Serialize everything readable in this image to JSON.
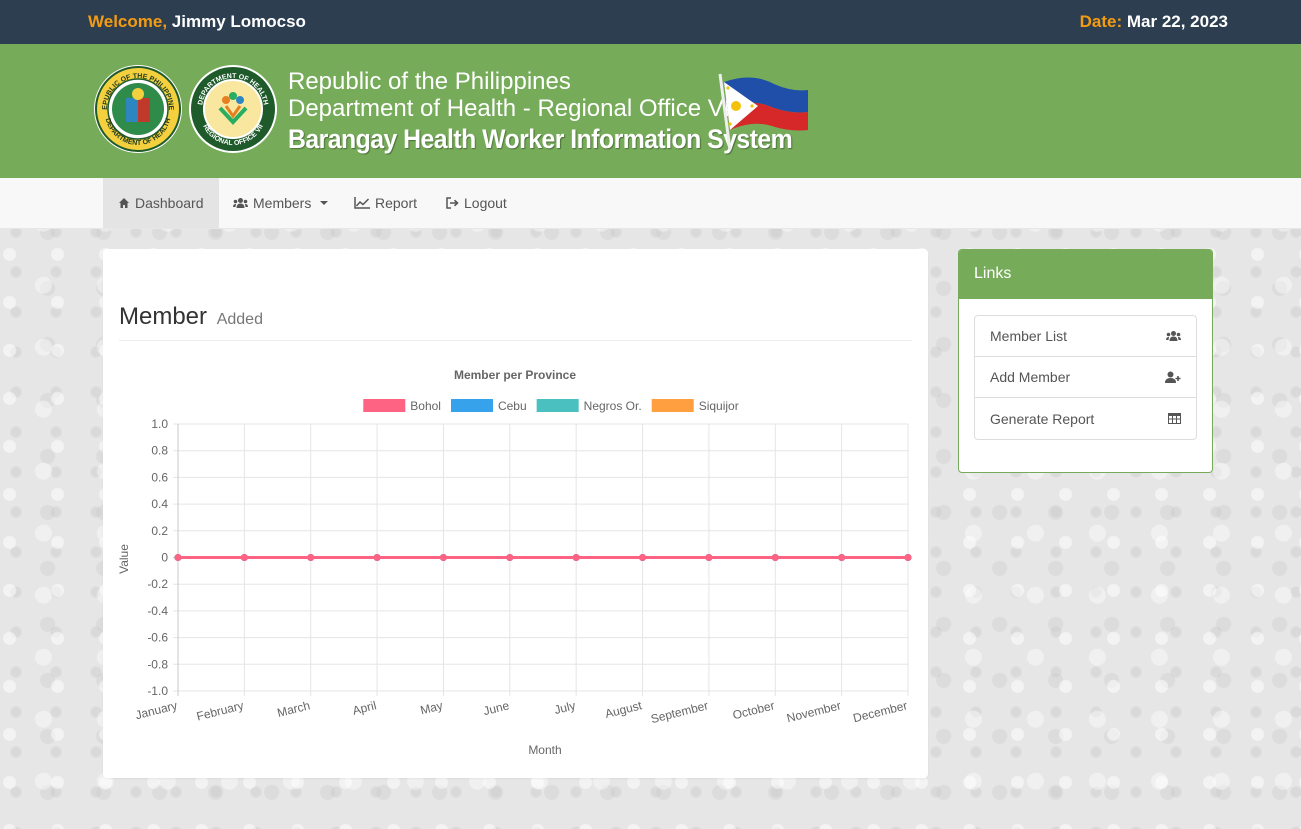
{
  "topbar": {
    "welcome_label": "Welcome,",
    "user_name": "Jimmy Lomocso",
    "date_label": "Date:",
    "date_value": "Mar 22, 2023"
  },
  "banner": {
    "line1": "Republic of the Philippines",
    "line2": "Department of Health - Regional Office VII",
    "title": "Barangay Health Worker Information System",
    "seal1_text_top": "REPUBLIC OF THE PHILIPPINES",
    "seal1_text_bottom": "DEPARTMENT OF HEALTH",
    "seal2_text_top": "DEPARTMENT OF HEALTH",
    "seal2_text_bottom": "REGIONAL OFFICE VII"
  },
  "nav": {
    "items": [
      {
        "label": "Dashboard",
        "icon": "home-icon",
        "active": true
      },
      {
        "label": "Members",
        "icon": "users-icon",
        "dropdown": true
      },
      {
        "label": "Report",
        "icon": "line-chart-icon"
      },
      {
        "label": "Logout",
        "icon": "logout-icon"
      }
    ]
  },
  "main": {
    "title": "Member",
    "subtitle": "Added"
  },
  "links": {
    "heading": "Links",
    "items": [
      {
        "label": "Member List",
        "icon": "users-icon"
      },
      {
        "label": "Add Member",
        "icon": "user-plus-icon"
      },
      {
        "label": "Generate Report",
        "icon": "table-icon"
      }
    ]
  },
  "chart_data": {
    "type": "line",
    "title": "Member per Province",
    "xlabel": "Month",
    "ylabel": "Value",
    "categories": [
      "January",
      "February",
      "March",
      "April",
      "May",
      "June",
      "July",
      "August",
      "September",
      "October",
      "November",
      "December"
    ],
    "series": [
      {
        "name": "Bohol",
        "color": "#ff6384",
        "values": [
          0,
          0,
          0,
          0,
          0,
          0,
          0,
          0,
          0,
          0,
          0,
          0
        ]
      },
      {
        "name": "Cebu",
        "color": "#36a2eb",
        "values": [
          0,
          0,
          0,
          0,
          0,
          0,
          0,
          0,
          0,
          0,
          0,
          0
        ]
      },
      {
        "name": "Negros Or.",
        "color": "#4bc0c0",
        "values": [
          0,
          0,
          0,
          0,
          0,
          0,
          0,
          0,
          0,
          0,
          0,
          0
        ]
      },
      {
        "name": "Siquijor",
        "color": "#ff9f40",
        "values": [
          0,
          0,
          0,
          0,
          0,
          0,
          0,
          0,
          0,
          0,
          0,
          0
        ]
      }
    ],
    "ylim": [
      -1.0,
      1.0
    ],
    "yticks": [
      "1.0",
      "0.8",
      "0.6",
      "0.4",
      "0.2",
      "0",
      "-0.2",
      "-0.4",
      "-0.6",
      "-0.8",
      "-1.0"
    ],
    "grid": true,
    "legend": "top"
  }
}
